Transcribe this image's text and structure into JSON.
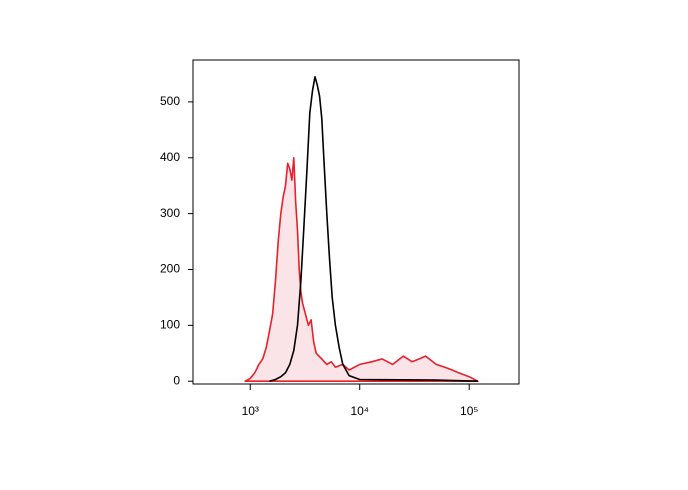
{
  "chart_data": {
    "type": "histogram-overlay",
    "xscale": "log",
    "xlim": [
      300,
      285000
    ],
    "xticks": [
      {
        "value": 1000,
        "label": "10³"
      },
      {
        "value": 10000,
        "label": "10⁴"
      },
      {
        "value": 100000,
        "label": "10⁵"
      }
    ],
    "ylim": [
      -5,
      575
    ],
    "yticks": [
      0,
      100,
      200,
      300,
      400,
      500
    ],
    "series": [
      {
        "color": "#e8202a",
        "fill": "#fbe4e7",
        "x": [
          900,
          1000,
          1100,
          1200,
          1300,
          1400,
          1500,
          1600,
          1700,
          1800,
          1900,
          2000,
          2100,
          2200,
          2300,
          2400,
          2500,
          2600,
          2700,
          2800,
          2900,
          3000,
          3200,
          3400,
          3600,
          3800,
          4000,
          4500,
          5000,
          5500,
          6000,
          7000,
          8000,
          10000,
          13000,
          16000,
          20000,
          25000,
          30000,
          35000,
          40000,
          50000,
          60000,
          70000,
          80000,
          100000,
          120000
        ],
        "values": [
          0,
          5,
          15,
          30,
          40,
          60,
          90,
          120,
          180,
          250,
          300,
          330,
          350,
          390,
          380,
          360,
          400,
          320,
          270,
          200,
          160,
          140,
          120,
          100,
          110,
          70,
          50,
          40,
          30,
          35,
          25,
          30,
          20,
          30,
          35,
          40,
          30,
          45,
          35,
          40,
          45,
          30,
          25,
          20,
          15,
          8,
          0
        ]
      },
      {
        "color": "#000000",
        "x": [
          1500,
          1700,
          1900,
          2100,
          2300,
          2500,
          2700,
          2900,
          3100,
          3300,
          3500,
          3700,
          3900,
          4100,
          4300,
          4500,
          4700,
          5000,
          5300,
          5600,
          6000,
          6500,
          7000,
          8000,
          10000,
          50000,
          120000
        ],
        "values": [
          0,
          3,
          8,
          15,
          30,
          55,
          100,
          180,
          280,
          380,
          480,
          520,
          545,
          530,
          510,
          470,
          400,
          300,
          220,
          150,
          100,
          60,
          30,
          10,
          3,
          2,
          0
        ]
      }
    ]
  }
}
